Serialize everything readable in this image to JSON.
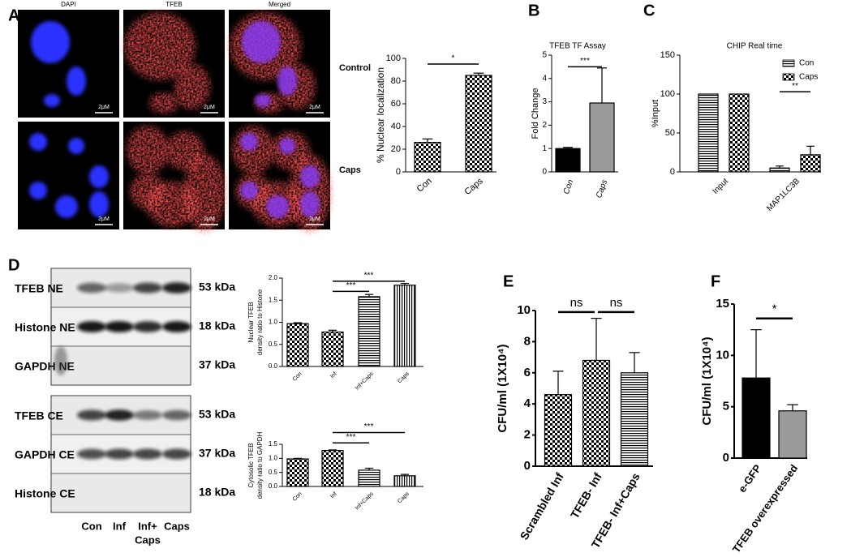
{
  "panel_labels": [
    "A",
    "B",
    "C",
    "D",
    "E",
    "F"
  ],
  "microscopy": {
    "columns": [
      "DAPI",
      "TFEB",
      "Merged"
    ],
    "rows": [
      "Control",
      "Caps"
    ],
    "scale_bar": "2μM"
  },
  "blots": {
    "nuclear": [
      {
        "label": "TFEB NE",
        "size": "53 kDa"
      },
      {
        "label": "Histone NE",
        "size": "18 kDa"
      },
      {
        "label": "GAPDH NE",
        "size": "37 kDa"
      }
    ],
    "cytosolic": [
      {
        "label": "TFEB CE",
        "size": "53 kDa"
      },
      {
        "label": "GAPDH CE",
        "size": "37 kDa"
      },
      {
        "label": "Histone CE",
        "size": "18 kDa"
      }
    ],
    "lanes": [
      "Con",
      "Inf",
      [
        "Inf+",
        "Caps"
      ],
      "Caps"
    ]
  },
  "chart_data": [
    {
      "type": "bar",
      "y_label": "% Nuclear localization",
      "categories": [
        "Con",
        "Caps"
      ],
      "values": [
        26,
        85
      ],
      "errors": [
        3,
        2
      ],
      "fills": [
        "checker",
        "checker"
      ],
      "ylim": [
        0,
        100
      ],
      "yticks": [
        0,
        20,
        40,
        60,
        80,
        100
      ],
      "annotations": [
        "*"
      ]
    },
    {
      "type": "bar",
      "title": "TFEB TF Assay",
      "y_label": "Fold Change",
      "categories": [
        "Con",
        "Caps"
      ],
      "values": [
        1,
        2.95
      ],
      "errors": [
        0.05,
        1.5
      ],
      "fills": [
        "#000000",
        "#9a9a9a"
      ],
      "ylim": [
        0,
        5
      ],
      "yticks": [
        0,
        1,
        2,
        3,
        4,
        5
      ],
      "annotations": [
        "***"
      ]
    },
    {
      "type": "bar",
      "title": "CHIP Real time",
      "y_label": "%Input",
      "categories": [
        "Input",
        "MAP1LC3B"
      ],
      "series": [
        {
          "name": "Con",
          "fill": "hlines",
          "values": [
            100,
            5
          ],
          "errors": [
            null,
            2.5
          ]
        },
        {
          "name": "Caps",
          "fill": "checker",
          "values": [
            100,
            22
          ],
          "errors": [
            null,
            11
          ]
        }
      ],
      "ylim": [
        0,
        150
      ],
      "yticks": [
        0,
        50,
        100,
        150
      ],
      "legend": "top-right",
      "annotations": [
        "**"
      ]
    },
    {
      "type": "bar",
      "y_label": [
        "Nuclear TFEB",
        "density ratio to Histone"
      ],
      "categories": [
        "Con",
        "Inf",
        "Inf+Caps",
        "Caps"
      ],
      "values": [
        0.97,
        0.78,
        1.58,
        1.84
      ],
      "errors": [
        0.02,
        0.04,
        0.05,
        0.04
      ],
      "fills": [
        "checker",
        "checker",
        "hlines",
        "vlines"
      ],
      "ylim": [
        0,
        2
      ],
      "yticks": [
        {
          "value": 0,
          "label": "0.0"
        },
        0.5,
        {
          "value": 1,
          "label": "1.0"
        },
        1.5,
        {
          "value": 2,
          "label": "2.0"
        }
      ],
      "annotations": [
        "***",
        "***"
      ]
    },
    {
      "type": "bar",
      "y_label": [
        "Cytosolic TFEB",
        "density ratio to GAPDH"
      ],
      "categories": [
        "Con",
        "Inf",
        "Inf+Caps",
        "Caps"
      ],
      "values": [
        0.98,
        1.28,
        0.58,
        0.38
      ],
      "errors": [
        0.02,
        0.02,
        0.07,
        0.05
      ],
      "fills": [
        "checker",
        "checker",
        "hlines",
        "vlines"
      ],
      "ylim": [
        0,
        1.5
      ],
      "yticks": [
        {
          "value": 0,
          "label": "0.0"
        },
        0.5,
        {
          "value": 1,
          "label": "1.0"
        },
        1.5
      ],
      "annotations": [
        "***",
        "***"
      ]
    },
    {
      "type": "bar",
      "y_label": "CFU/ml (1X10⁴)",
      "categories": [
        "Scrambled Inf",
        "TFEB- Inf",
        "TFEB- Inf+Caps"
      ],
      "values": [
        4.6,
        6.8,
        6.0
      ],
      "errors": [
        1.5,
        2.7,
        1.3
      ],
      "fills": [
        "checker",
        "checker",
        "hlines"
      ],
      "ylim": [
        0,
        10
      ],
      "yticks": [
        0,
        2,
        4,
        6,
        8,
        10
      ],
      "annotations": [
        "ns",
        "ns"
      ]
    },
    {
      "type": "bar",
      "y_label": "CFU/ml (1X10⁴)",
      "categories": [
        "e-GFP",
        "TFEB overexpressed"
      ],
      "values": [
        7.8,
        4.6
      ],
      "errors": [
        4.7,
        0.6
      ],
      "fills": [
        "#000000",
        "#9a9a9a"
      ],
      "ylim": [
        0,
        15
      ],
      "yticks": [
        0,
        5,
        10,
        15
      ],
      "annotations": [
        "*"
      ]
    }
  ]
}
